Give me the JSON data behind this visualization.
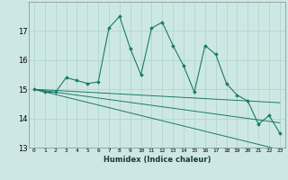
{
  "title": "",
  "xlabel": "Humidex (Indice chaleur)",
  "bg_color": "#cde8e4",
  "grid_color": "#b0d5cc",
  "line_color": "#1a7a6a",
  "x_values": [
    0,
    1,
    2,
    3,
    4,
    5,
    6,
    7,
    8,
    9,
    10,
    11,
    12,
    13,
    14,
    15,
    16,
    17,
    18,
    19,
    20,
    21,
    22,
    23
  ],
  "main_y": [
    15.0,
    14.9,
    14.9,
    15.4,
    15.3,
    15.2,
    15.25,
    17.1,
    17.5,
    16.4,
    15.5,
    17.1,
    17.3,
    16.5,
    15.8,
    14.9,
    16.5,
    16.2,
    15.2,
    14.8,
    14.6,
    13.8,
    14.1,
    13.5
  ],
  "trend1_y": [
    15.0,
    14.98,
    14.96,
    14.94,
    14.92,
    14.9,
    14.88,
    14.86,
    14.84,
    14.82,
    14.8,
    14.78,
    14.76,
    14.74,
    14.72,
    14.7,
    14.68,
    14.66,
    14.64,
    14.62,
    14.6,
    14.58,
    14.56,
    14.54
  ],
  "trend2_y": [
    15.0,
    14.95,
    14.9,
    14.85,
    14.8,
    14.75,
    14.7,
    14.65,
    14.6,
    14.55,
    14.5,
    14.45,
    14.4,
    14.35,
    14.3,
    14.25,
    14.2,
    14.15,
    14.1,
    14.05,
    14.0,
    13.95,
    13.9,
    13.85
  ],
  "trend3_y": [
    15.0,
    14.91,
    14.82,
    14.73,
    14.64,
    14.55,
    14.46,
    14.37,
    14.28,
    14.19,
    14.1,
    14.01,
    13.92,
    13.83,
    13.74,
    13.65,
    13.56,
    13.47,
    13.38,
    13.29,
    13.2,
    13.11,
    13.02,
    12.93
  ],
  "ylim": [
    13,
    18
  ],
  "xlim": [
    -0.5,
    23.5
  ],
  "yticks": [
    13,
    14,
    15,
    16,
    17
  ],
  "xticks": [
    0,
    1,
    2,
    3,
    4,
    5,
    6,
    7,
    8,
    9,
    10,
    11,
    12,
    13,
    14,
    15,
    16,
    17,
    18,
    19,
    20,
    21,
    22,
    23
  ],
  "marker": "D",
  "markersize": 2.0,
  "linewidth": 0.8
}
